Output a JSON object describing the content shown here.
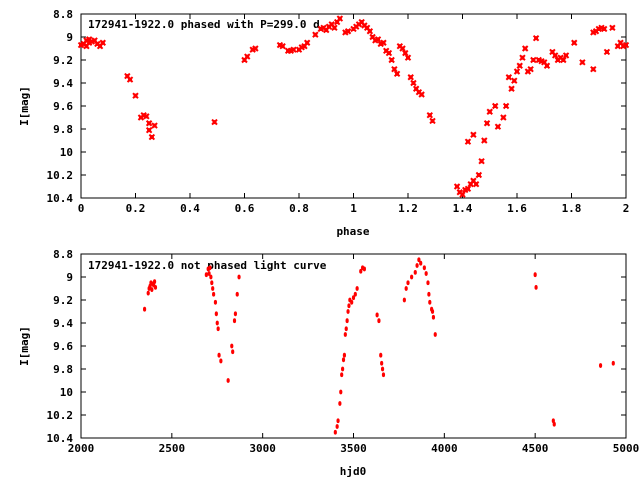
{
  "colors": {
    "points": "#ff0000",
    "axes": "#000000",
    "background": "#ffffff"
  },
  "chart_data": [
    {
      "type": "scatter",
      "title": "172941-1922.0 phased with P=299.0 d",
      "xlabel": "phase",
      "ylabel": "I[mag]",
      "xlim": [
        0,
        2
      ],
      "ylim": [
        8.8,
        10.4
      ],
      "y_inverted": true,
      "grid": false,
      "xticks": [
        "0",
        "0.2",
        "0.4",
        "0.6",
        "0.8",
        "1",
        "1.2",
        "1.4",
        "1.6",
        "1.8",
        "2"
      ],
      "yticks": [
        "8.8",
        "9",
        "9.2",
        "9.4",
        "9.6",
        "9.8",
        "10",
        "10.2",
        "10.4"
      ],
      "marker": "cross",
      "points": [
        [
          0.0,
          9.07
        ],
        [
          0.01,
          9.06
        ],
        [
          0.02,
          9.08
        ],
        [
          0.02,
          9.03
        ],
        [
          0.03,
          9.05
        ],
        [
          0.03,
          9.02
        ],
        [
          0.04,
          9.04
        ],
        [
          0.05,
          9.03
        ],
        [
          0.06,
          9.06
        ],
        [
          0.07,
          9.08
        ],
        [
          0.08,
          9.05
        ],
        [
          0.17,
          9.34
        ],
        [
          0.18,
          9.37
        ],
        [
          0.2,
          9.51
        ],
        [
          0.22,
          9.7
        ],
        [
          0.23,
          9.68
        ],
        [
          0.24,
          9.69
        ],
        [
          0.25,
          9.75
        ],
        [
          0.25,
          9.81
        ],
        [
          0.26,
          9.87
        ],
        [
          0.27,
          9.77
        ],
        [
          0.49,
          9.74
        ],
        [
          0.6,
          9.2
        ],
        [
          0.61,
          9.17
        ],
        [
          0.63,
          9.11
        ],
        [
          0.64,
          9.1
        ],
        [
          0.73,
          9.07
        ],
        [
          0.74,
          9.08
        ],
        [
          0.76,
          9.12
        ],
        [
          0.77,
          9.12
        ],
        [
          0.78,
          9.11
        ],
        [
          0.8,
          9.11
        ],
        [
          0.81,
          9.09
        ],
        [
          0.82,
          9.08
        ],
        [
          0.83,
          9.05
        ],
        [
          0.86,
          8.98
        ],
        [
          0.88,
          8.93
        ],
        [
          0.89,
          8.92
        ],
        [
          0.9,
          8.94
        ],
        [
          0.91,
          8.91
        ],
        [
          0.92,
          8.89
        ],
        [
          0.93,
          8.92
        ],
        [
          0.94,
          8.87
        ],
        [
          0.95,
          8.84
        ],
        [
          0.97,
          8.96
        ],
        [
          0.98,
          8.95
        ],
        [
          1.0,
          8.93
        ],
        [
          1.01,
          8.91
        ],
        [
          1.02,
          8.89
        ],
        [
          1.03,
          8.87
        ],
        [
          1.04,
          8.9
        ],
        [
          1.05,
          8.92
        ],
        [
          1.06,
          8.95
        ],
        [
          1.07,
          9.0
        ],
        [
          1.08,
          9.03
        ],
        [
          1.09,
          9.02
        ],
        [
          1.1,
          9.06
        ],
        [
          1.11,
          9.05
        ],
        [
          1.12,
          9.12
        ],
        [
          1.13,
          9.14
        ],
        [
          1.14,
          9.2
        ],
        [
          1.15,
          9.28
        ],
        [
          1.16,
          9.32
        ],
        [
          1.17,
          9.08
        ],
        [
          1.18,
          9.1
        ],
        [
          1.19,
          9.14
        ],
        [
          1.2,
          9.18
        ],
        [
          1.21,
          9.35
        ],
        [
          1.22,
          9.4
        ],
        [
          1.23,
          9.45
        ],
        [
          1.24,
          9.48
        ],
        [
          1.25,
          9.5
        ],
        [
          1.28,
          9.68
        ],
        [
          1.29,
          9.73
        ],
        [
          1.38,
          10.3
        ],
        [
          1.39,
          10.35
        ],
        [
          1.4,
          10.37
        ],
        [
          1.41,
          10.33
        ],
        [
          1.42,
          10.32
        ],
        [
          1.43,
          10.28
        ],
        [
          1.44,
          10.25
        ],
        [
          1.45,
          10.28
        ],
        [
          1.46,
          10.2
        ],
        [
          1.42,
          9.91
        ],
        [
          1.44,
          9.85
        ],
        [
          1.47,
          10.08
        ],
        [
          1.48,
          9.9
        ],
        [
          1.49,
          9.75
        ],
        [
          1.5,
          9.65
        ],
        [
          1.52,
          9.6
        ],
        [
          1.53,
          9.78
        ],
        [
          1.55,
          9.7
        ],
        [
          1.56,
          9.6
        ],
        [
          1.57,
          9.35
        ],
        [
          1.58,
          9.45
        ],
        [
          1.59,
          9.38
        ],
        [
          1.6,
          9.3
        ],
        [
          1.61,
          9.25
        ],
        [
          1.62,
          9.18
        ],
        [
          1.63,
          9.1
        ],
        [
          1.64,
          9.3
        ],
        [
          1.65,
          9.28
        ],
        [
          1.66,
          9.2
        ],
        [
          1.67,
          9.01
        ],
        [
          1.68,
          9.2
        ],
        [
          1.69,
          9.21
        ],
        [
          1.7,
          9.22
        ],
        [
          1.71,
          9.25
        ],
        [
          1.73,
          9.13
        ],
        [
          1.74,
          9.16
        ],
        [
          1.75,
          9.2
        ],
        [
          1.76,
          9.18
        ],
        [
          1.77,
          9.2
        ],
        [
          1.78,
          9.16
        ],
        [
          1.81,
          9.05
        ],
        [
          1.84,
          9.22
        ],
        [
          1.88,
          9.28
        ],
        [
          1.88,
          8.96
        ],
        [
          1.89,
          8.95
        ],
        [
          1.9,
          8.93
        ],
        [
          1.91,
          8.92
        ],
        [
          1.92,
          8.93
        ],
        [
          1.93,
          9.13
        ],
        [
          1.95,
          8.92
        ],
        [
          1.97,
          9.08
        ],
        [
          1.98,
          9.05
        ],
        [
          1.99,
          9.08
        ],
        [
          2.0,
          9.07
        ]
      ]
    },
    {
      "type": "scatter",
      "title": "172941-1922.0 not phased light curve",
      "xlabel": "hjd0",
      "ylabel": "I[mag]",
      "xlim": [
        2000,
        5000
      ],
      "ylim": [
        8.8,
        10.4
      ],
      "y_inverted": true,
      "grid": false,
      "xticks": [
        "2000",
        "2500",
        "3000",
        "3500",
        "4000",
        "4500",
        "5000"
      ],
      "yticks": [
        "8.8",
        "9",
        "9.2",
        "9.4",
        "9.6",
        "9.8",
        "10",
        "10.2",
        "10.4"
      ],
      "marker": "dot",
      "points": [
        [
          2350,
          9.28
        ],
        [
          2370,
          9.14
        ],
        [
          2375,
          9.1
        ],
        [
          2380,
          9.08
        ],
        [
          2385,
          9.05
        ],
        [
          2390,
          9.11
        ],
        [
          2395,
          9.06
        ],
        [
          2400,
          9.07
        ],
        [
          2405,
          9.04
        ],
        [
          2410,
          9.09
        ],
        [
          2690,
          8.98
        ],
        [
          2700,
          8.93
        ],
        [
          2705,
          8.97
        ],
        [
          2710,
          8.92
        ],
        [
          2715,
          9.0
        ],
        [
          2720,
          9.05
        ],
        [
          2725,
          9.1
        ],
        [
          2730,
          9.15
        ],
        [
          2740,
          9.22
        ],
        [
          2745,
          9.32
        ],
        [
          2750,
          9.4
        ],
        [
          2755,
          9.45
        ],
        [
          2760,
          9.68
        ],
        [
          2770,
          9.73
        ],
        [
          2810,
          9.9
        ],
        [
          2830,
          9.6
        ],
        [
          2835,
          9.65
        ],
        [
          2845,
          9.38
        ],
        [
          2850,
          9.32
        ],
        [
          2860,
          9.15
        ],
        [
          2870,
          9.0
        ],
        [
          3400,
          10.35
        ],
        [
          3410,
          10.3
        ],
        [
          3415,
          10.25
        ],
        [
          3425,
          10.1
        ],
        [
          3430,
          10.0
        ],
        [
          3435,
          9.85
        ],
        [
          3440,
          9.8
        ],
        [
          3445,
          9.72
        ],
        [
          3450,
          9.68
        ],
        [
          3455,
          9.5
        ],
        [
          3460,
          9.45
        ],
        [
          3465,
          9.38
        ],
        [
          3470,
          9.3
        ],
        [
          3475,
          9.25
        ],
        [
          3480,
          9.2
        ],
        [
          3490,
          9.22
        ],
        [
          3500,
          9.18
        ],
        [
          3510,
          9.15
        ],
        [
          3520,
          9.1
        ],
        [
          3540,
          8.95
        ],
        [
          3550,
          8.92
        ],
        [
          3560,
          8.93
        ],
        [
          3630,
          9.33
        ],
        [
          3640,
          9.38
        ],
        [
          3650,
          9.68
        ],
        [
          3655,
          9.75
        ],
        [
          3660,
          9.8
        ],
        [
          3665,
          9.85
        ],
        [
          3780,
          9.2
        ],
        [
          3790,
          9.1
        ],
        [
          3800,
          9.05
        ],
        [
          3820,
          9.0
        ],
        [
          3840,
          8.96
        ],
        [
          3850,
          8.9
        ],
        [
          3860,
          8.85
        ],
        [
          3870,
          8.88
        ],
        [
          3890,
          8.92
        ],
        [
          3900,
          8.97
        ],
        [
          3910,
          9.05
        ],
        [
          3915,
          9.15
        ],
        [
          3920,
          9.22
        ],
        [
          3930,
          9.28
        ],
        [
          3935,
          9.3
        ],
        [
          3940,
          9.35
        ],
        [
          3950,
          9.5
        ],
        [
          4500,
          8.98
        ],
        [
          4505,
          9.09
        ],
        [
          4600,
          10.25
        ],
        [
          4605,
          10.28
        ],
        [
          4860,
          9.77
        ],
        [
          4930,
          9.75
        ]
      ]
    }
  ]
}
